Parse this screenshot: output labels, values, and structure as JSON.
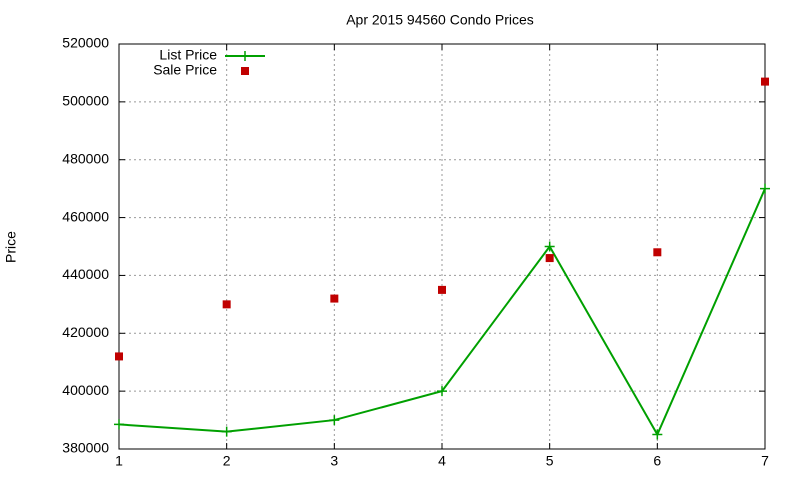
{
  "chart_data": {
    "type": "line",
    "title": "Apr 2015 94560 Condo Prices",
    "y_label": "Price",
    "x": [
      1,
      2,
      3,
      4,
      5,
      6,
      7
    ],
    "xlim": [
      1,
      7
    ],
    "xticks": [
      1,
      2,
      3,
      4,
      5,
      6,
      7
    ],
    "ylim": [
      380000,
      520000
    ],
    "yticks": [
      380000,
      400000,
      420000,
      440000,
      460000,
      480000,
      500000,
      520000
    ],
    "grid": true,
    "legend": "top-left",
    "series": [
      {
        "name": "List Price",
        "color": "#00a000",
        "style": "linespoints",
        "values": [
          388500,
          386000,
          390000,
          400000,
          450000,
          385000,
          470000
        ]
      },
      {
        "name": "Sale Price",
        "color": "#c00000",
        "style": "points",
        "values": [
          412000,
          430000,
          432000,
          435000,
          446000,
          448000,
          507000
        ]
      }
    ]
  }
}
